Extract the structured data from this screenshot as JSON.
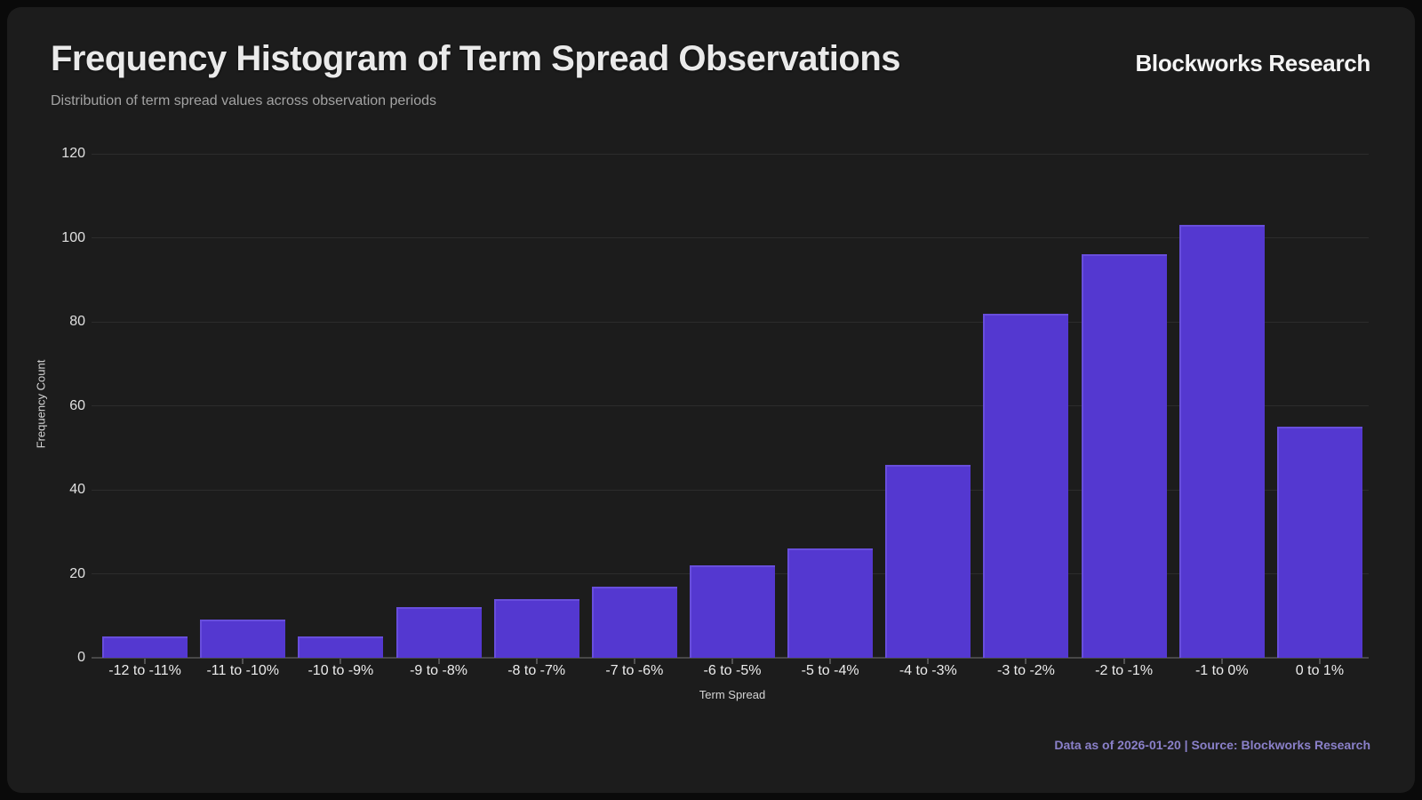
{
  "header": {
    "title": "Frequency Histogram of Term Spread Observations",
    "subtitle": "Distribution of term spread values across observation periods",
    "brand": "Blockworks Research"
  },
  "footer": {
    "text": "Data as of 2026-01-20 | Source: Blockworks Research"
  },
  "chart_data": {
    "type": "bar",
    "title": "Frequency Histogram of Term Spread Observations",
    "subtitle": "Distribution of term spread values across observation periods",
    "categories": [
      "-12 to -11%",
      "-11 to -10%",
      "-10 to -9%",
      "-9 to -8%",
      "-8 to -7%",
      "-7 to -6%",
      "-6 to -5%",
      "-5 to -4%",
      "-4 to -3%",
      "-3 to -2%",
      "-2 to -1%",
      "-1 to 0%",
      "0 to 1%"
    ],
    "values": [
      5,
      9,
      5,
      12,
      14,
      17,
      22,
      26,
      46,
      82,
      96,
      103,
      55
    ],
    "xlabel": "Term Spread",
    "ylabel": "Frequency Count",
    "ylim": [
      0,
      120
    ],
    "yticks": [
      0,
      20,
      40,
      60,
      80,
      100,
      120
    ],
    "grid": true,
    "legend_position": "none",
    "bar_color": "#5438d0",
    "panel_color": "#1c1c1c",
    "grid_color": "#2c2c2c",
    "source_text_color": "#8a80c9"
  }
}
